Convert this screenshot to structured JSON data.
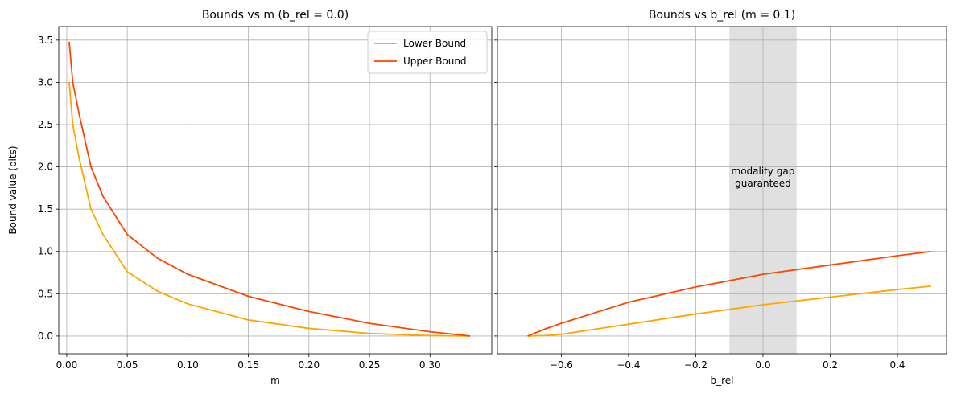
{
  "chart_data": [
    {
      "type": "line",
      "title": "Bounds vs m (b_rel = 0.0)",
      "xlabel": "m",
      "ylabel": "Bound value (bits)",
      "x": [
        0.002,
        0.005,
        0.01,
        0.02,
        0.03,
        0.05,
        0.075,
        0.1,
        0.15,
        0.2,
        0.25,
        0.3,
        0.333
      ],
      "series": [
        {
          "name": "Lower Bound",
          "color": "#ffa500",
          "values": [
            3.0,
            2.5,
            2.12,
            1.5,
            1.2,
            0.76,
            0.53,
            0.38,
            0.19,
            0.09,
            0.03,
            0.005,
            0
          ]
        },
        {
          "name": "Upper Bound",
          "color": "#ff4500",
          "values": [
            3.48,
            3.0,
            2.64,
            2.0,
            1.65,
            1.2,
            0.92,
            0.73,
            0.47,
            0.29,
            0.15,
            0.05,
            0
          ]
        }
      ],
      "xlim": [
        -0.0066,
        0.351
      ],
      "xticks": [
        {
          "value": 0,
          "label": "0.00"
        },
        0.05,
        {
          "value": 0.1,
          "label": "0.10"
        },
        0.15,
        {
          "value": 0.2,
          "label": "0.20"
        },
        0.25,
        {
          "value": 0.3,
          "label": "0.30"
        }
      ],
      "ylim": [
        -0.21,
        3.66
      ],
      "yticks": [
        {
          "value": 0,
          "label": "0.0"
        },
        0.5,
        {
          "value": 1,
          "label": "1.0"
        },
        1.5,
        {
          "value": 2,
          "label": "2.0"
        },
        2.5,
        {
          "value": 3,
          "label": "3.0"
        },
        3.5
      ],
      "grid": true,
      "legend": "upper right"
    },
    {
      "type": "line",
      "title": "Bounds vs b_rel (m = 0.1)",
      "xlabel": "b_rel",
      "x": [
        -0.7,
        -0.65,
        -0.6,
        -0.4,
        -0.2,
        0,
        0.2,
        0.4,
        0.5
      ],
      "series": [
        {
          "name": "Lower Bound",
          "color": "#ffa500",
          "values": [
            0,
            0.005,
            0.02,
            0.14,
            0.26,
            0.37,
            0.46,
            0.55,
            0.59
          ]
        },
        {
          "name": "Upper Bound",
          "color": "#ff4500",
          "values": [
            0,
            0.08,
            0.15,
            0.4,
            0.58,
            0.73,
            0.84,
            0.95,
            1.0
          ]
        }
      ],
      "span": [
        -0.1,
        0.1
      ],
      "span_color": "#e0e0e0",
      "annotation": [
        "modality gap",
        "guaranteed"
      ],
      "xlim": [
        -0.79,
        0.546
      ],
      "xticks": [
        {
          "value": -0.6,
          "label": "−0.6"
        },
        {
          "value": -0.4,
          "label": "−0.4"
        },
        {
          "value": -0.2,
          "label": "−0.2"
        },
        {
          "value": 0,
          "label": "0.0"
        },
        0.2,
        0.4
      ],
      "ylim": [
        -0.21,
        3.66
      ],
      "yticks": [
        0,
        0.5,
        1,
        1.5,
        2,
        2.5,
        3,
        3.5
      ],
      "ytick_labels": false,
      "grid": true
    }
  ]
}
